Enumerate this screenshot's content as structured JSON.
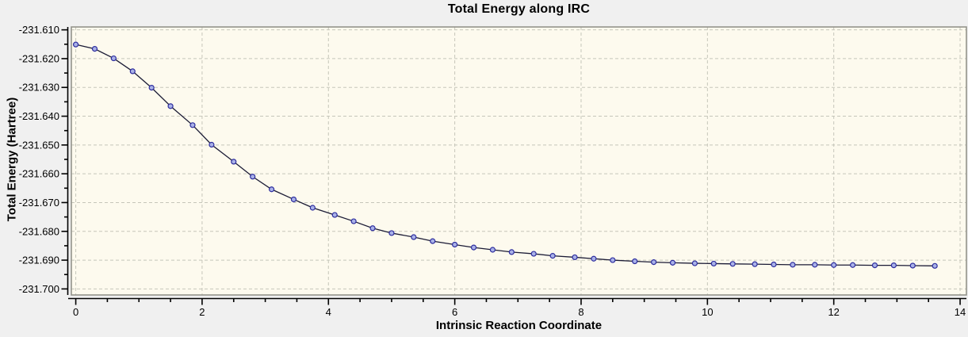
{
  "window": {
    "background_color": "#f0f0f0"
  },
  "chart_data": {
    "type": "line",
    "title": "Total Energy along IRC",
    "xlabel": "Intrinsic Reaction Coordinate",
    "ylabel": "Total Energy (Hartree)",
    "xlim": [
      -0.07,
      14.1
    ],
    "ylim": [
      -231.7021,
      -231.609
    ],
    "x_major_ticks": [
      0,
      2,
      4,
      6,
      8,
      10,
      12,
      14
    ],
    "x_minor_step": 0.5,
    "y_major_ticks": [
      -231.61,
      -231.62,
      -231.63,
      -231.64,
      -231.65,
      -231.66,
      -231.67,
      -231.68,
      -231.69,
      -231.7
    ],
    "y_minor_step": 0.005,
    "y_tick_decimals": 3,
    "grid": {
      "show": true,
      "style": "dashed",
      "color": "#c6c6ba",
      "dash": "4 3"
    },
    "legend": {
      "show": false
    },
    "plot_background": "#fdfaee",
    "frame_color": "#93938b",
    "axis_color": "#000000",
    "line_color": "#1b1b35",
    "marker": {
      "shape": "circle",
      "fill": "#aab2e8",
      "stroke": "#2d2d9e",
      "radius": 3
    },
    "series": [
      {
        "name": "Total Energy",
        "x": [
          0,
          0.3,
          0.6,
          0.9,
          1.2,
          1.5,
          1.85,
          2.15,
          2.5,
          2.8,
          3.1,
          3.45,
          3.75,
          4.1,
          4.4,
          4.7,
          5.0,
          5.35,
          5.65,
          6.0,
          6.3,
          6.6,
          6.9,
          7.25,
          7.55,
          7.9,
          8.2,
          8.5,
          8.85,
          9.15,
          9.45,
          9.8,
          10.1,
          10.4,
          10.75,
          11.05,
          11.35,
          11.7,
          12.0,
          12.3,
          12.65,
          12.95,
          13.25,
          13.6
        ],
        "y": [
          -231.6151,
          -231.6166,
          -231.6199,
          -231.6244,
          -231.6301,
          -231.6365,
          -231.6431,
          -231.6499,
          -231.6558,
          -231.661,
          -231.6654,
          -231.6689,
          -231.6718,
          -231.6743,
          -231.6765,
          -231.6789,
          -231.6806,
          -231.682,
          -231.6834,
          -231.6846,
          -231.6856,
          -231.6864,
          -231.6872,
          -231.6878,
          -231.6885,
          -231.689,
          -231.6895,
          -231.69,
          -231.6904,
          -231.6907,
          -231.6909,
          -231.6911,
          -231.6912,
          -231.6913,
          -231.6914,
          -231.6915,
          -231.6916,
          -231.6916,
          -231.6917,
          -231.6917,
          -231.6918,
          -231.6918,
          -231.6919,
          -231.692
        ]
      }
    ]
  }
}
